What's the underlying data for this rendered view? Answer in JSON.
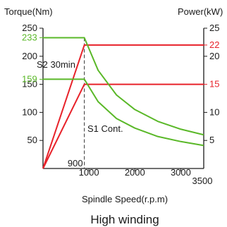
{
  "chart_data": {
    "type": "line",
    "title": "",
    "caption": "High winding",
    "xlabel": "Spindle Speed(r.p.m)",
    "ylabel_left": "Torque(Nm)",
    "ylabel_right": "Power(kW)",
    "xlim": [
      0,
      3500
    ],
    "ylim_left": [
      0,
      250
    ],
    "ylim_right": [
      0,
      25
    ],
    "grid": false,
    "x_ticks": [
      {
        "value": 1000,
        "label": "1000"
      },
      {
        "value": 2000,
        "label": "2000"
      },
      {
        "value": 3000,
        "label": "3000"
      }
    ],
    "x_end_label": "3500",
    "left_ticks": [
      {
        "value": 50,
        "label": "50"
      },
      {
        "value": 100,
        "label": "100"
      },
      {
        "value": 150,
        "label": "150"
      },
      {
        "value": 200,
        "label": "200"
      },
      {
        "value": 250,
        "label": "250"
      }
    ],
    "left_highlight_ticks": [
      {
        "value": 159,
        "label": "159",
        "color": "#5ab828"
      },
      {
        "value": 233,
        "label": "233",
        "color": "#5ab828"
      }
    ],
    "right_ticks": [
      {
        "value": 5,
        "label": "5",
        "color": "#1a1a1a"
      },
      {
        "value": 10,
        "label": "10",
        "color": "#1a1a1a"
      },
      {
        "value": 15,
        "label": "15",
        "color": "#e8222a"
      },
      {
        "value": 20,
        "label": "20",
        "color": "#1a1a1a"
      },
      {
        "value": 22,
        "label": "22",
        "color": "#e8222a"
      },
      {
        "value": 25,
        "label": "25",
        "color": "#1a1a1a"
      }
    ],
    "base_speed": {
      "value": 900,
      "label": "900"
    },
    "annotations": [
      "S2 30min",
      "S1 Cont."
    ],
    "series": [
      {
        "kind": "power",
        "mode": "S2 30min",
        "color": "#e8222a",
        "x": [
          0,
          900,
          3500
        ],
        "y": [
          0,
          22,
          22
        ]
      },
      {
        "kind": "power",
        "mode": "S1 Cont.",
        "color": "#e8222a",
        "x": [
          0,
          900,
          3500
        ],
        "y": [
          0,
          15,
          15
        ]
      },
      {
        "kind": "torque",
        "mode": "S2 30min",
        "color": "#5ab828",
        "x": [
          0,
          900,
          1200,
          1600,
          2000,
          2500,
          3000,
          3500
        ],
        "y": [
          233,
          233,
          175,
          131,
          105,
          84,
          70,
          60
        ]
      },
      {
        "kind": "torque",
        "mode": "S1 Cont.",
        "color": "#5ab828",
        "x": [
          0,
          900,
          1200,
          1600,
          2000,
          2500,
          3000,
          3500
        ],
        "y": [
          159,
          159,
          119,
          89,
          72,
          57,
          48,
          41
        ]
      }
    ]
  }
}
